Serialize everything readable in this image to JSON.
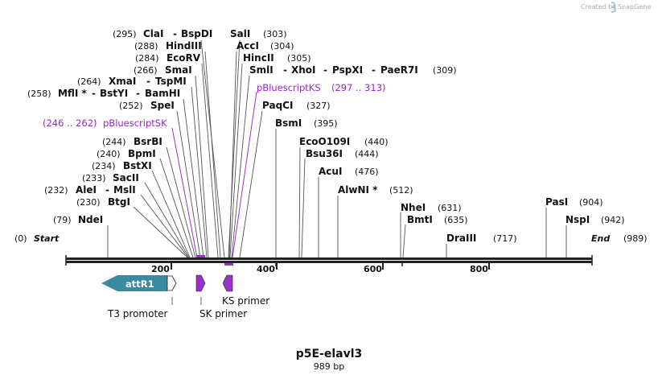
{
  "logo": {
    "created_by": "Created by",
    "brand": "SnapGene"
  },
  "plasmid": {
    "name": "p5E-elavl3",
    "size": "989 bp"
  },
  "sequence": {
    "start_label": "Start",
    "start_pos": "(0)",
    "end_label": "End",
    "end_pos": "(989)"
  },
  "ruler": [
    "200",
    "400",
    "600",
    "800"
  ],
  "enzymes": {
    "ClaI": {
      "name": "ClaI",
      "pos": "(295)"
    },
    "BspDI": {
      "name": "BspDI"
    },
    "SalI": {
      "name": "SalI",
      "pos": "(303)"
    },
    "HindIII": {
      "name": "HindIII",
      "pos": "(288)"
    },
    "AccI": {
      "name": "AccI",
      "pos": "(304)"
    },
    "EcoRV": {
      "name": "EcoRV",
      "pos": "(284)"
    },
    "HincII": {
      "name": "HincII",
      "pos": "(305)"
    },
    "SmaI": {
      "name": "SmaI",
      "pos": "(266)"
    },
    "SmlI": {
      "name": "SmlI",
      "pos": "(309)"
    },
    "XhoI": {
      "name": "XhoI"
    },
    "PspXI": {
      "name": "PspXI"
    },
    "PaeR7I": {
      "name": "PaeR7I"
    },
    "XmaI": {
      "name": "XmaI",
      "pos": "(264)"
    },
    "TspMI": {
      "name": "TspMI"
    },
    "MflI": {
      "name": "MflI *",
      "pos": "(258)"
    },
    "BstYI": {
      "name": "BstYI"
    },
    "BamHI": {
      "name": "BamHI"
    },
    "SpeI": {
      "name": "SpeI",
      "pos": "(252)"
    },
    "PaqCI": {
      "name": "PaqCI",
      "pos": "(327)"
    },
    "BsmI": {
      "name": "BsmI",
      "pos": "(395)"
    },
    "BsrBI": {
      "name": "BsrBI",
      "pos": "(244)"
    },
    "EcoO109I": {
      "name": "EcoO109I",
      "pos": "(440)"
    },
    "BpmI": {
      "name": "BpmI",
      "pos": "(240)"
    },
    "Bsu36I": {
      "name": "Bsu36I",
      "pos": "(444)"
    },
    "BstXI": {
      "name": "BstXI",
      "pos": "(234)"
    },
    "AcuI": {
      "name": "AcuI",
      "pos": "(476)"
    },
    "SacII": {
      "name": "SacII",
      "pos": "(233)"
    },
    "AleI": {
      "name": "AleI",
      "pos": "(232)"
    },
    "MslI": {
      "name": "MslI"
    },
    "AlwNI": {
      "name": "AlwNI *",
      "pos": "(512)"
    },
    "BtgI": {
      "name": "BtgI",
      "pos": "(230)"
    },
    "PasI": {
      "name": "PasI",
      "pos": "(904)"
    },
    "NheI": {
      "name": "NheI",
      "pos": "(631)"
    },
    "BmtI": {
      "name": "BmtI",
      "pos": "(635)"
    },
    "NspI": {
      "name": "NspI",
      "pos": "(942)"
    },
    "NdeI": {
      "name": "NdeI",
      "pos": "(79)"
    },
    "DraIII": {
      "name": "DraIII",
      "pos": "(717)"
    }
  },
  "primer_sites": {
    "ks": {
      "name": "pBluescriptKS",
      "range": "(297 .. 313)"
    },
    "sk": {
      "name": "pBluescriptSK",
      "range": "(246 .. 262)"
    }
  },
  "features": {
    "attR1": "attR1",
    "t3": "T3 promoter",
    "sk_primer": "SK primer",
    "ks_primer": "KS primer"
  },
  "colors": {
    "attR1": "#3a8aa0",
    "primer": "#9932cc",
    "primer_text": "#a020d0",
    "line": "#555555"
  }
}
